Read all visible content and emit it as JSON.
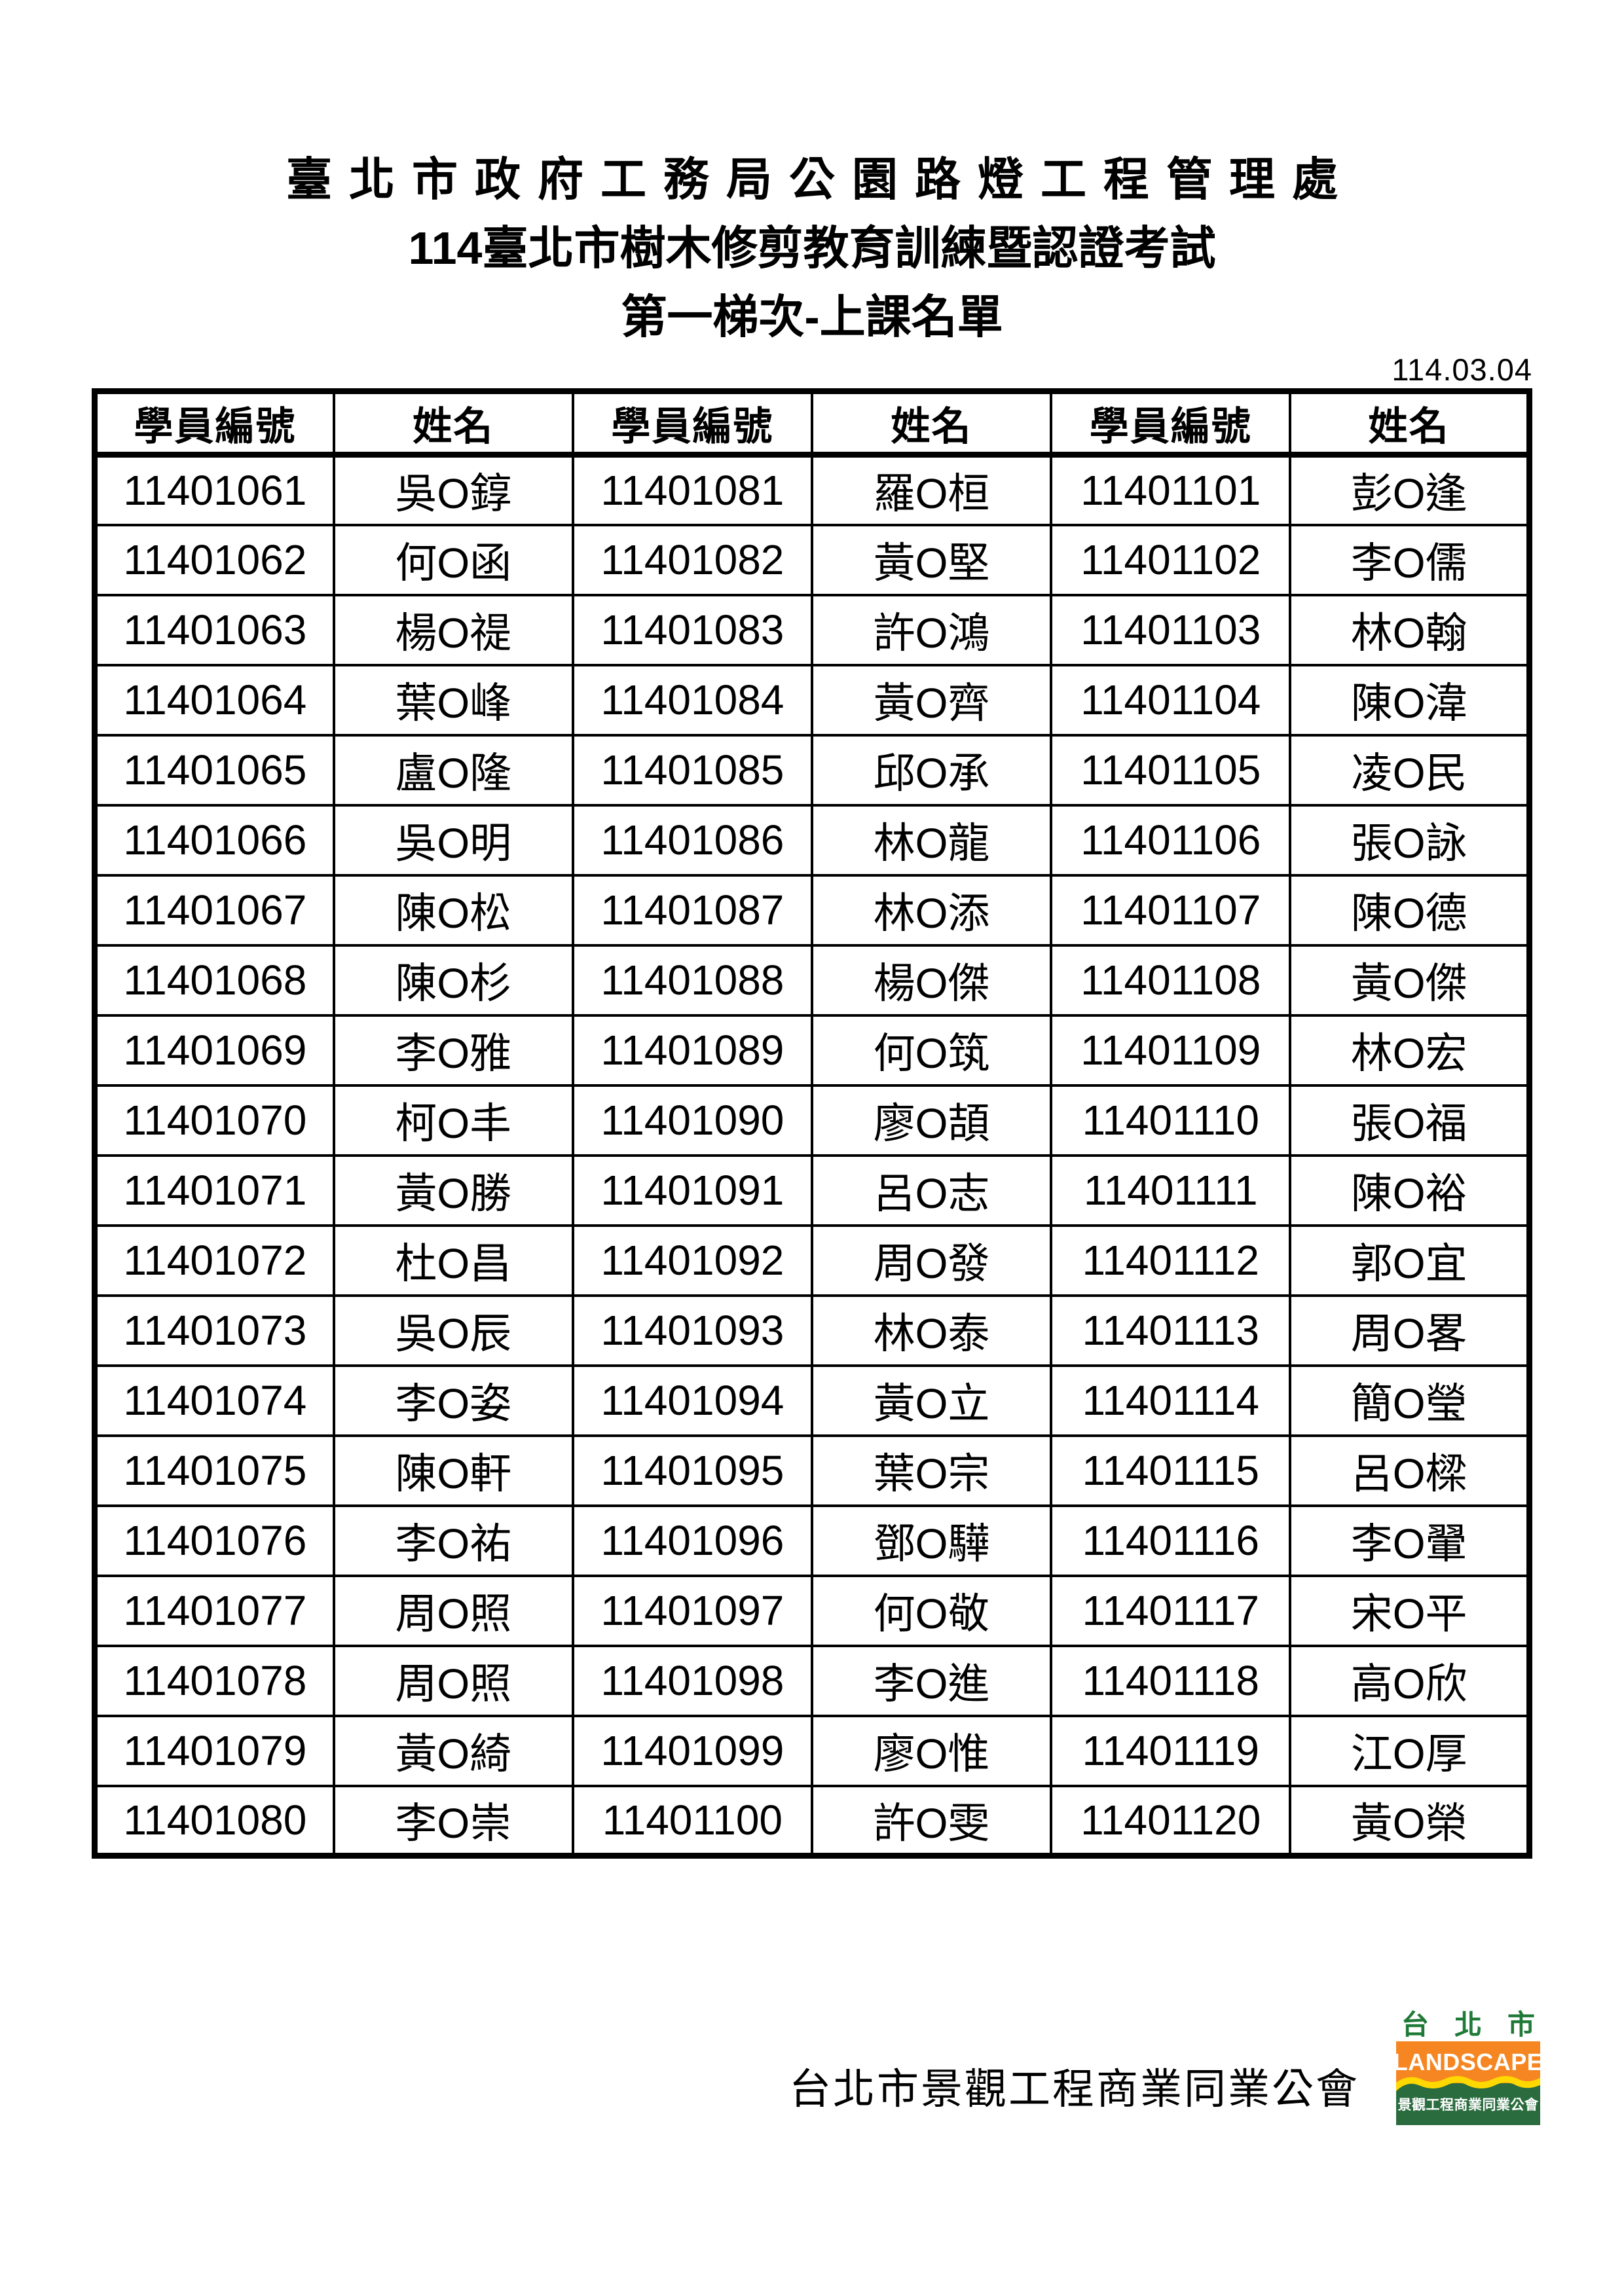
{
  "page": {
    "title_line1": "臺北市政府工務局公園路燈工程管理處",
    "title_line2": "114臺北市樹木修剪教育訓練暨認證考試",
    "title_line3": "第一梯次-上課名單",
    "date": "114.03.04"
  },
  "table": {
    "headers": [
      "學員編號",
      "姓名",
      "學員編號",
      "姓名",
      "學員編號",
      "姓名"
    ],
    "rows": [
      [
        "11401061",
        "吳O錞",
        "11401081",
        "羅O桓",
        "11401101",
        "彭O逢"
      ],
      [
        "11401062",
        "何O函",
        "11401082",
        "黃O堅",
        "11401102",
        "李O儒"
      ],
      [
        "11401063",
        "楊O禔",
        "11401083",
        "許O鴻",
        "11401103",
        "林O翰"
      ],
      [
        "11401064",
        "葉O峰",
        "11401084",
        "黃O齊",
        "11401104",
        "陳O湋"
      ],
      [
        "11401065",
        "盧O隆",
        "11401085",
        "邱O承",
        "11401105",
        "凌O民"
      ],
      [
        "11401066",
        "吳O明",
        "11401086",
        "林O龍",
        "11401106",
        "張O詠"
      ],
      [
        "11401067",
        "陳O松",
        "11401087",
        "林O添",
        "11401107",
        "陳O德"
      ],
      [
        "11401068",
        "陳O杉",
        "11401088",
        "楊O傑",
        "11401108",
        "黃O傑"
      ],
      [
        "11401069",
        "李O雅",
        "11401089",
        "何O筑",
        "11401109",
        "林O宏"
      ],
      [
        "11401070",
        "柯O丰",
        "11401090",
        "廖O頡",
        "11401110",
        "張O福"
      ],
      [
        "11401071",
        "黃O勝",
        "11401091",
        "呂O志",
        "11401111",
        "陳O裕"
      ],
      [
        "11401072",
        "杜O昌",
        "11401092",
        "周O發",
        "11401112",
        "郭O宜"
      ],
      [
        "11401073",
        "吳O辰",
        "11401093",
        "林O泰",
        "11401113",
        "周O畧"
      ],
      [
        "11401074",
        "李O姿",
        "11401094",
        "黃O立",
        "11401114",
        "簡O瑩"
      ],
      [
        "11401075",
        "陳O軒",
        "11401095",
        "葉O宗",
        "11401115",
        "呂O樑"
      ],
      [
        "11401076",
        "李O祐",
        "11401096",
        "鄧O驊",
        "11401116",
        "李O翬"
      ],
      [
        "11401077",
        "周O照",
        "11401097",
        "何O敬",
        "11401117",
        "宋O平"
      ],
      [
        "11401078",
        "周O照",
        "11401098",
        "李O進",
        "11401118",
        "高O欣"
      ],
      [
        "11401079",
        "黃O綺",
        "11401099",
        "廖O惟",
        "11401119",
        "江O厚"
      ],
      [
        "11401080",
        "李O崇",
        "11401100",
        "許O雯",
        "11401120",
        "黃O榮"
      ]
    ]
  },
  "footer": {
    "organization": "台北市景觀工程商業同業公會",
    "logo": {
      "top_text": "台北市",
      "middle_text": "LANDSCAPE",
      "bottom_text": "景觀工程商業同業公會",
      "colors": {
        "orange_block": "#F58621",
        "yellow_wave": "#FFD800",
        "green_block": "#2B6C3F",
        "green_text": "#1F7A38"
      }
    }
  }
}
